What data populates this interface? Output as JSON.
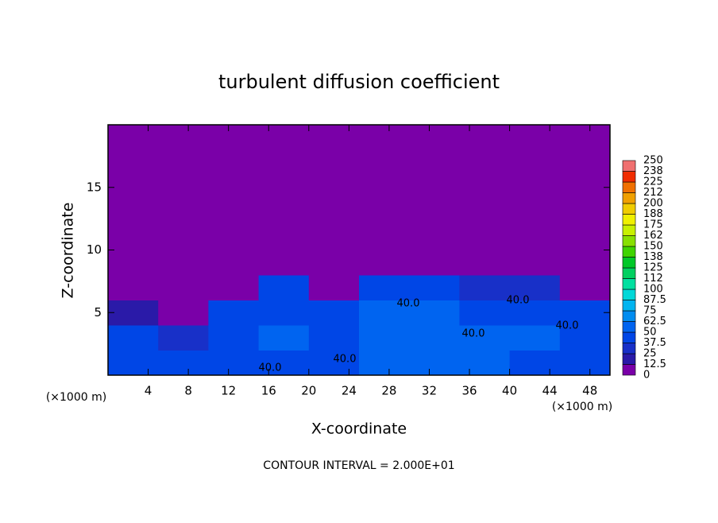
{
  "chart_data": {
    "type": "heatmap",
    "title": "turbulent diffusion coefficient",
    "x_label": "X-coordinate",
    "y_label": "Z-coordinate",
    "x_unit": "(×1000 m)",
    "y_unit": "(×1000 m)",
    "footer": "CONTOUR INTERVAL = 2.000E+01",
    "xlim": [
      0,
      50
    ],
    "ylim": [
      0,
      20
    ],
    "xticks": [
      4,
      8,
      12,
      16,
      20,
      24,
      28,
      32,
      36,
      40,
      44,
      48
    ],
    "yticks": [
      5,
      10,
      15
    ],
    "x_bins": [
      0,
      5,
      10,
      15,
      20,
      25,
      30,
      35,
      40,
      45,
      50
    ],
    "y_bins": [
      0,
      2,
      4,
      6,
      8,
      10,
      20
    ],
    "values": [
      [
        45,
        45,
        40,
        45,
        45,
        55,
        50,
        50,
        45,
        45
      ],
      [
        40,
        35,
        40,
        50,
        45,
        55,
        55,
        50,
        50,
        45
      ],
      [
        20,
        10,
        40,
        45,
        40,
        50,
        50,
        45,
        45,
        40
      ],
      [
        0,
        0,
        10,
        40,
        5,
        40,
        45,
        35,
        30,
        5
      ],
      [
        0,
        0,
        0,
        0,
        0,
        5,
        0,
        0,
        0,
        0
      ],
      [
        0,
        0,
        0,
        0,
        0,
        0,
        0,
        0,
        0,
        0
      ]
    ],
    "contour_labels": [
      "40.0",
      "40.0",
      "40.0",
      "40.0",
      "40.0",
      "40.0"
    ],
    "colorbar_levels": [
      0,
      {
        "value": 12.5,
        "label": "12.5"
      },
      25,
      {
        "value": 37.5,
        "label": "37.5"
      },
      50,
      {
        "value": 62.5,
        "label": "62.5"
      },
      75,
      {
        "value": 87.5,
        "label": "87.5"
      },
      100,
      {
        "value": 112.5,
        "label": "112"
      },
      125,
      {
        "value": 137.5,
        "label": "138"
      },
      150,
      {
        "value": 162.5,
        "label": "162"
      },
      175,
      {
        "value": 187.5,
        "label": "188"
      },
      200,
      {
        "value": 212.5,
        "label": "212"
      },
      225,
      {
        "value": 237.5,
        "label": "238"
      },
      250
    ],
    "colorbar_colors": [
      "#7a00a8",
      "#2a1aa8",
      "#1830c8",
      "#0046e6",
      "#0064f0",
      "#008cf0",
      "#00b4f0",
      "#00d8d8",
      "#00e0a0",
      "#00d060",
      "#00c828",
      "#40d400",
      "#88e000",
      "#c8f000",
      "#f0f000",
      "#f0cc00",
      "#f0a000",
      "#f07000",
      "#f02c00",
      "#f07070"
    ]
  }
}
